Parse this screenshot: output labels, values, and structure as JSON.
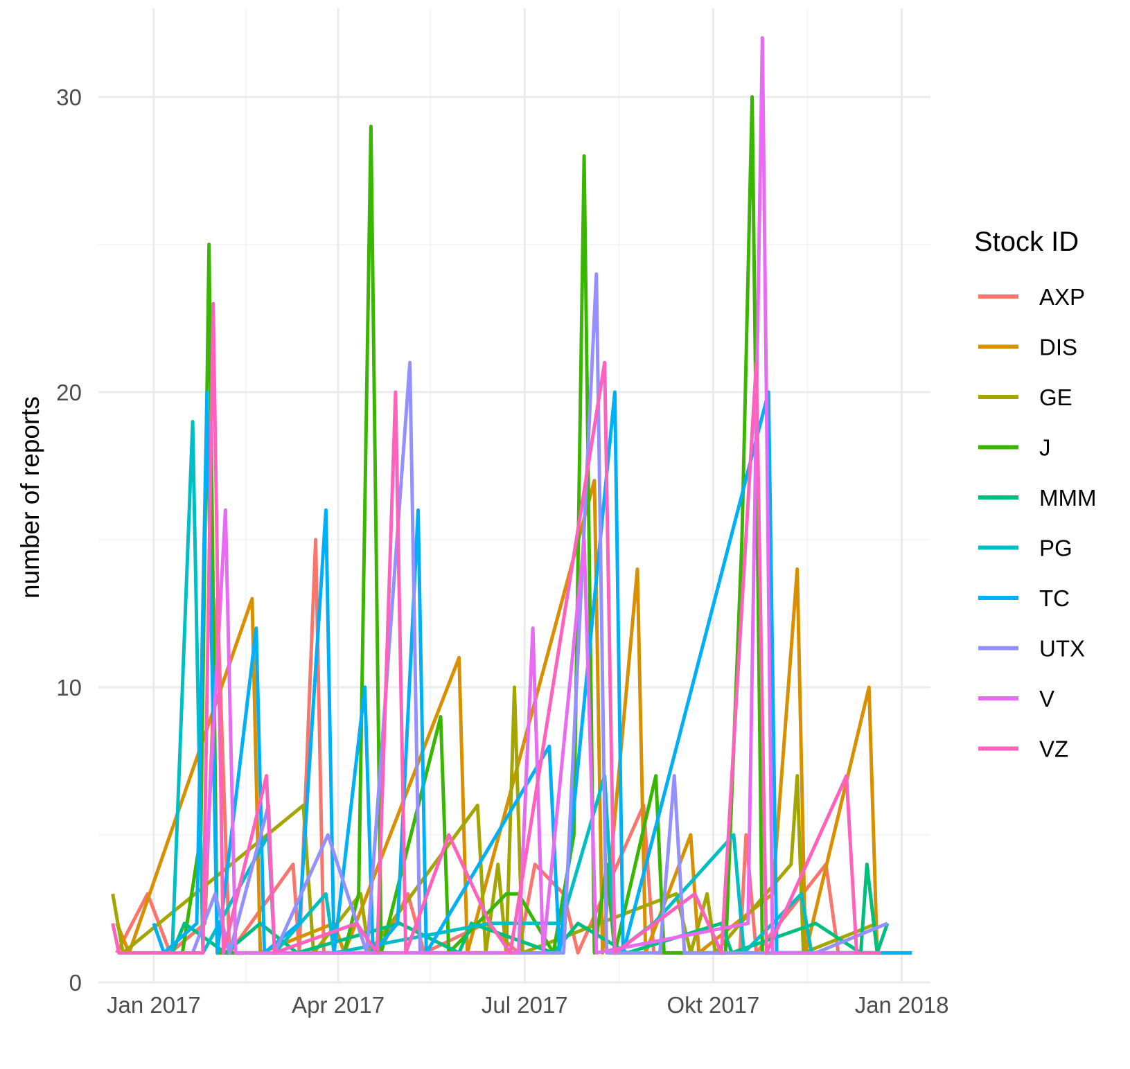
{
  "chart_data": {
    "type": "line",
    "title": "",
    "xlabel": "",
    "ylabel": "number of reports",
    "ylim": [
      0,
      33
    ],
    "xlim": [
      "2016-12-05",
      "2018-01-15"
    ],
    "x_ticks": [
      {
        "date": "2017-01-01",
        "label": "Jan 2017"
      },
      {
        "date": "2017-04-01",
        "label": "Apr 2017"
      },
      {
        "date": "2017-07-01",
        "label": "Jul 2017"
      },
      {
        "date": "2017-10-01",
        "label": "Okt 2017"
      },
      {
        "date": "2018-01-01",
        "label": "Jan 2018"
      }
    ],
    "x_minor_ticks": [
      "2017-02-15",
      "2017-05-16",
      "2017-08-16",
      "2017-11-16"
    ],
    "y_ticks": [
      0,
      10,
      20,
      30
    ],
    "y_minor_ticks": [
      5,
      15,
      25
    ],
    "grid": true,
    "legend": {
      "title": "Stock ID",
      "position": "right"
    },
    "series": [
      {
        "name": "AXP",
        "color": "#F8766D",
        "points": [
          [
            "2016-12-14",
            1
          ],
          [
            "2016-12-29",
            3
          ],
          [
            "2017-01-09",
            1
          ],
          [
            "2017-01-26",
            2
          ],
          [
            "2017-02-01",
            13
          ],
          [
            "2017-02-07",
            1
          ],
          [
            "2017-03-10",
            4
          ],
          [
            "2017-03-13",
            1
          ],
          [
            "2017-03-21",
            15
          ],
          [
            "2017-03-25",
            1
          ],
          [
            "2017-04-21",
            1
          ],
          [
            "2017-05-05",
            3
          ],
          [
            "2017-05-13",
            1
          ],
          [
            "2017-06-12",
            2
          ],
          [
            "2017-06-28",
            1
          ],
          [
            "2017-07-06",
            4
          ],
          [
            "2017-07-20",
            3
          ],
          [
            "2017-07-27",
            1
          ],
          [
            "2017-08-28",
            6
          ],
          [
            "2017-09-02",
            1
          ],
          [
            "2017-10-14",
            1
          ],
          [
            "2017-10-17",
            5
          ],
          [
            "2017-10-22",
            1
          ],
          [
            "2017-11-25",
            4
          ],
          [
            "2017-12-01",
            1
          ],
          [
            "2017-12-20",
            1
          ]
        ]
      },
      {
        "name": "DIS",
        "color": "#D89000",
        "points": [
          [
            "2016-12-14",
            2
          ],
          [
            "2016-12-20",
            1
          ],
          [
            "2017-02-18",
            13
          ],
          [
            "2017-02-22",
            1
          ],
          [
            "2017-03-30",
            2
          ],
          [
            "2017-04-04",
            1
          ],
          [
            "2017-05-30",
            11
          ],
          [
            "2017-06-03",
            1
          ],
          [
            "2017-08-04",
            17
          ],
          [
            "2017-08-08",
            1
          ],
          [
            "2017-08-25",
            14
          ],
          [
            "2017-08-29",
            1
          ],
          [
            "2017-09-20",
            5
          ],
          [
            "2017-09-24",
            1
          ],
          [
            "2017-10-30",
            3
          ],
          [
            "2017-11-11",
            14
          ],
          [
            "2017-11-15",
            1
          ],
          [
            "2017-12-16",
            10
          ],
          [
            "2017-12-20",
            1
          ]
        ]
      },
      {
        "name": "GE",
        "color": "#A3A500",
        "points": [
          [
            "2016-12-12",
            3
          ],
          [
            "2016-12-17",
            1
          ],
          [
            "2017-03-15",
            6
          ],
          [
            "2017-03-20",
            1
          ],
          [
            "2017-04-12",
            3
          ],
          [
            "2017-04-16",
            1
          ],
          [
            "2017-06-08",
            6
          ],
          [
            "2017-06-12",
            1
          ],
          [
            "2017-06-18",
            4
          ],
          [
            "2017-06-22",
            1
          ],
          [
            "2017-06-26",
            10
          ],
          [
            "2017-06-30",
            1
          ],
          [
            "2017-09-13",
            3
          ],
          [
            "2017-09-20",
            1
          ],
          [
            "2017-09-28",
            3
          ],
          [
            "2017-10-02",
            1
          ],
          [
            "2017-11-08",
            4
          ],
          [
            "2017-11-11",
            7
          ],
          [
            "2017-11-14",
            1
          ],
          [
            "2017-12-20",
            2
          ]
        ]
      },
      {
        "name": "J",
        "color": "#39B600",
        "points": [
          [
            "2017-01-15",
            1
          ],
          [
            "2017-01-24",
            5
          ],
          [
            "2017-01-28",
            25
          ],
          [
            "2017-02-01",
            1
          ],
          [
            "2017-04-04",
            1
          ],
          [
            "2017-04-11",
            3
          ],
          [
            "2017-04-17",
            29
          ],
          [
            "2017-04-22",
            1
          ],
          [
            "2017-05-21",
            9
          ],
          [
            "2017-05-25",
            1
          ],
          [
            "2017-06-22",
            3
          ],
          [
            "2017-06-28",
            3
          ],
          [
            "2017-07-15",
            1
          ],
          [
            "2017-07-25",
            5
          ],
          [
            "2017-07-30",
            28
          ],
          [
            "2017-08-04",
            1
          ],
          [
            "2017-08-10",
            4
          ],
          [
            "2017-08-14",
            1
          ],
          [
            "2017-09-03",
            7
          ],
          [
            "2017-09-07",
            1
          ],
          [
            "2017-10-07",
            1
          ],
          [
            "2017-10-15",
            15
          ],
          [
            "2017-10-20",
            30
          ],
          [
            "2017-10-25",
            1
          ],
          [
            "2017-11-08",
            1
          ],
          [
            "2017-12-22",
            1
          ]
        ]
      },
      {
        "name": "MMM",
        "color": "#00BF7D",
        "points": [
          [
            "2017-01-10",
            1
          ],
          [
            "2017-01-16",
            2
          ],
          [
            "2017-02-05",
            1
          ],
          [
            "2017-02-22",
            2
          ],
          [
            "2017-03-12",
            1
          ],
          [
            "2017-05-01",
            2
          ],
          [
            "2017-05-30",
            1
          ],
          [
            "2017-06-05",
            2
          ],
          [
            "2017-07-15",
            1
          ],
          [
            "2017-07-27",
            2
          ],
          [
            "2017-08-20",
            1
          ],
          [
            "2017-10-05",
            2
          ],
          [
            "2017-10-10",
            1
          ],
          [
            "2017-11-20",
            2
          ],
          [
            "2017-12-12",
            1
          ],
          [
            "2017-12-15",
            4
          ],
          [
            "2017-12-20",
            1
          ],
          [
            "2017-12-25",
            2
          ]
        ]
      },
      {
        "name": "PG",
        "color": "#00BFC4",
        "points": [
          [
            "2017-01-10",
            1
          ],
          [
            "2017-01-20",
            19
          ],
          [
            "2017-01-25",
            1
          ],
          [
            "2017-02-26",
            5
          ],
          [
            "2017-03-01",
            1
          ],
          [
            "2017-03-26",
            3
          ],
          [
            "2017-03-30",
            1
          ],
          [
            "2017-06-14",
            2
          ],
          [
            "2017-07-19",
            2
          ],
          [
            "2017-08-09",
            7
          ],
          [
            "2017-08-14",
            1
          ],
          [
            "2017-09-02",
            2
          ],
          [
            "2017-10-11",
            5
          ],
          [
            "2017-10-16",
            1
          ],
          [
            "2017-11-13",
            3
          ],
          [
            "2017-11-18",
            1
          ]
        ]
      },
      {
        "name": "TC",
        "color": "#00B0F6",
        "points": [
          [
            "2017-01-01",
            2
          ],
          [
            "2017-01-06",
            1
          ],
          [
            "2017-01-22",
            2
          ],
          [
            "2017-01-27",
            20
          ],
          [
            "2017-02-01",
            1
          ],
          [
            "2017-02-20",
            12
          ],
          [
            "2017-02-24",
            1
          ],
          [
            "2017-03-13",
            2
          ],
          [
            "2017-03-26",
            16
          ],
          [
            "2017-03-30",
            1
          ],
          [
            "2017-04-14",
            10
          ],
          [
            "2017-04-18",
            1
          ],
          [
            "2017-04-30",
            2
          ],
          [
            "2017-05-10",
            16
          ],
          [
            "2017-05-14",
            1
          ],
          [
            "2017-07-13",
            8
          ],
          [
            "2017-07-18",
            1
          ],
          [
            "2017-08-14",
            20
          ],
          [
            "2017-08-18",
            1
          ],
          [
            "2017-10-28",
            20
          ],
          [
            "2017-11-01",
            1
          ],
          [
            "2017-12-26",
            1
          ],
          [
            "2018-01-06",
            1
          ]
        ]
      },
      {
        "name": "UTX",
        "color": "#9590FF",
        "points": [
          [
            "2017-01-20",
            1
          ],
          [
            "2017-01-31",
            3
          ],
          [
            "2017-02-07",
            1
          ],
          [
            "2017-02-26",
            6
          ],
          [
            "2017-03-01",
            1
          ],
          [
            "2017-03-27",
            5
          ],
          [
            "2017-04-15",
            1
          ],
          [
            "2017-05-06",
            21
          ],
          [
            "2017-05-11",
            1
          ],
          [
            "2017-07-20",
            1
          ],
          [
            "2017-08-05",
            24
          ],
          [
            "2017-08-10",
            1
          ],
          [
            "2017-09-05",
            1
          ],
          [
            "2017-09-12",
            7
          ],
          [
            "2017-09-17",
            1
          ],
          [
            "2017-11-20",
            1
          ],
          [
            "2017-12-25",
            2
          ]
        ]
      },
      {
        "name": "V",
        "color": "#E76BF3",
        "points": [
          [
            "2017-01-25",
            2
          ],
          [
            "2017-02-05",
            16
          ],
          [
            "2017-02-10",
            1
          ],
          [
            "2017-06-28",
            1
          ],
          [
            "2017-07-05",
            12
          ],
          [
            "2017-07-10",
            1
          ],
          [
            "2017-07-30",
            15
          ],
          [
            "2017-08-05",
            1
          ],
          [
            "2017-10-18",
            2
          ],
          [
            "2017-10-25",
            32
          ],
          [
            "2017-10-30",
            1
          ],
          [
            "2017-12-10",
            1
          ]
        ]
      },
      {
        "name": "VZ",
        "color": "#FF62BC",
        "points": [
          [
            "2016-12-12",
            2
          ],
          [
            "2016-12-15",
            1
          ],
          [
            "2017-01-25",
            1
          ],
          [
            "2017-01-30",
            23
          ],
          [
            "2017-02-04",
            1
          ],
          [
            "2017-02-25",
            7
          ],
          [
            "2017-03-01",
            1
          ],
          [
            "2017-04-10",
            2
          ],
          [
            "2017-04-20",
            1
          ],
          [
            "2017-04-29",
            20
          ],
          [
            "2017-05-04",
            1
          ],
          [
            "2017-05-25",
            5
          ],
          [
            "2017-06-14",
            2
          ],
          [
            "2017-06-24",
            1
          ],
          [
            "2017-08-09",
            21
          ],
          [
            "2017-08-14",
            1
          ],
          [
            "2017-09-22",
            3
          ],
          [
            "2017-10-05",
            1
          ],
          [
            "2017-10-22",
            21
          ],
          [
            "2017-10-27",
            1
          ],
          [
            "2017-12-05",
            7
          ],
          [
            "2017-12-10",
            1
          ],
          [
            "2017-12-22",
            1
          ]
        ]
      }
    ]
  }
}
